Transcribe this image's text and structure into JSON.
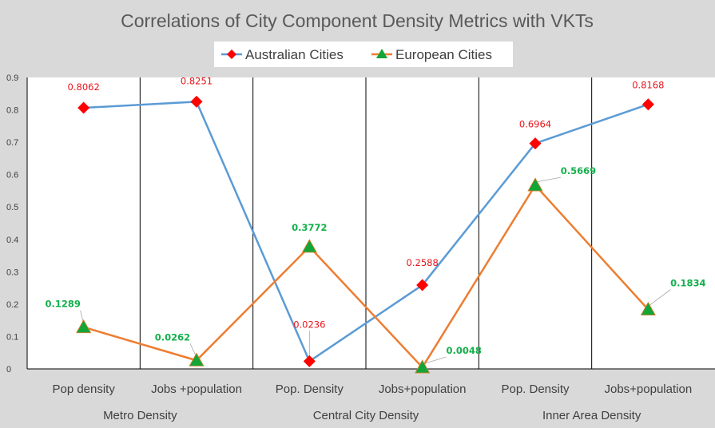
{
  "chart_data": {
    "type": "line",
    "title": "Correlations of City  Component Density Metrics with VKTs",
    "categories": [
      "Pop density",
      "Jobs +population",
      "Pop. Density",
      "Jobs+population",
      "Pop. Density",
      "Jobs+population"
    ],
    "groups": [
      {
        "label": "Metro Density",
        "span": [
          0,
          1
        ]
      },
      {
        "label": "Central City Density",
        "span": [
          2,
          3
        ]
      },
      {
        "label": "Inner Area Density",
        "span": [
          4,
          5
        ]
      }
    ],
    "ylim": [
      0,
      0.9
    ],
    "yticks": [
      "0",
      "0.1",
      "0.2",
      "0.3",
      "0.4",
      "0.5",
      "0.6",
      "0.7",
      "0.8",
      "0.9"
    ],
    "grid": false,
    "legend": "top",
    "series": [
      {
        "name": "Australian Cities",
        "values": [
          0.8062,
          0.8251,
          0.0236,
          0.2588,
          0.6964,
          0.8168
        ],
        "labels": [
          "0.8062",
          "0.8251",
          "0.0236",
          "0.2588",
          "0.6964",
          "0.8168"
        ],
        "line_color": "#5b9bd5",
        "marker": "diamond",
        "marker_color": "#ff0000",
        "label_color": "#e8141b"
      },
      {
        "name": "European Cities",
        "values": [
          0.1289,
          0.0262,
          0.3772,
          0.0048,
          0.5669,
          0.1834
        ],
        "labels": [
          "0.1289",
          "0.0262",
          "0.3772",
          "0.0048",
          "0.5669",
          "0.1834"
        ],
        "line_color": "#ed7d31",
        "marker": "triangle",
        "marker_color": "#13a538",
        "label_color": "#13b04b"
      }
    ]
  }
}
